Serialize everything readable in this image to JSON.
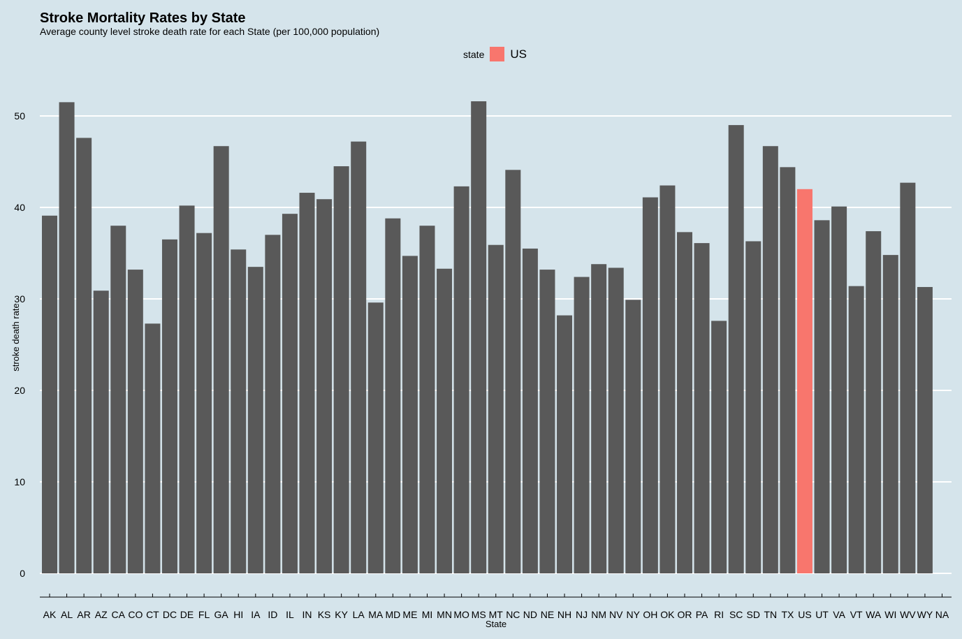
{
  "chart_data": {
    "type": "bar",
    "title": "Stroke Mortality Rates by State",
    "subtitle": "Average county level stroke death rate for each State (per 100,000 population)",
    "xlabel": "State",
    "ylabel": "stroke death rate",
    "ylim": [
      0,
      54
    ],
    "yticks": [
      0,
      10,
      20,
      30,
      40,
      50
    ],
    "grid": "horizontal major",
    "legend": {
      "title": "state",
      "entries": [
        "US"
      ],
      "position": "top"
    },
    "categories": [
      "AK",
      "AL",
      "AR",
      "AZ",
      "CA",
      "CO",
      "CT",
      "DC",
      "DE",
      "FL",
      "GA",
      "HI",
      "IA",
      "ID",
      "IL",
      "IN",
      "KS",
      "KY",
      "LA",
      "MA",
      "MD",
      "ME",
      "MI",
      "MN",
      "MO",
      "MS",
      "MT",
      "NC",
      "ND",
      "NE",
      "NH",
      "NJ",
      "NM",
      "NV",
      "NY",
      "OH",
      "OK",
      "OR",
      "PA",
      "RI",
      "SC",
      "SD",
      "TN",
      "TX",
      "US",
      "UT",
      "VA",
      "VT",
      "WA",
      "WI",
      "WV",
      "WY",
      "NA"
    ],
    "values": [
      39.1,
      51.5,
      47.6,
      30.9,
      38.0,
      33.2,
      27.3,
      36.5,
      40.2,
      37.2,
      46.7,
      35.4,
      33.5,
      37.0,
      39.3,
      41.6,
      40.9,
      44.5,
      47.2,
      29.6,
      38.8,
      34.7,
      38.0,
      33.3,
      42.3,
      51.6,
      35.9,
      44.1,
      35.5,
      33.2,
      28.2,
      32.4,
      33.8,
      33.4,
      29.9,
      41.1,
      42.4,
      37.3,
      36.1,
      27.6,
      49.0,
      36.3,
      46.7,
      44.4,
      42.0,
      38.6,
      40.1,
      31.4,
      37.4,
      34.8,
      42.7,
      31.3,
      null
    ],
    "highlight": {
      "category": "US",
      "color": "#f8766d"
    },
    "bar_color": "#595959"
  }
}
